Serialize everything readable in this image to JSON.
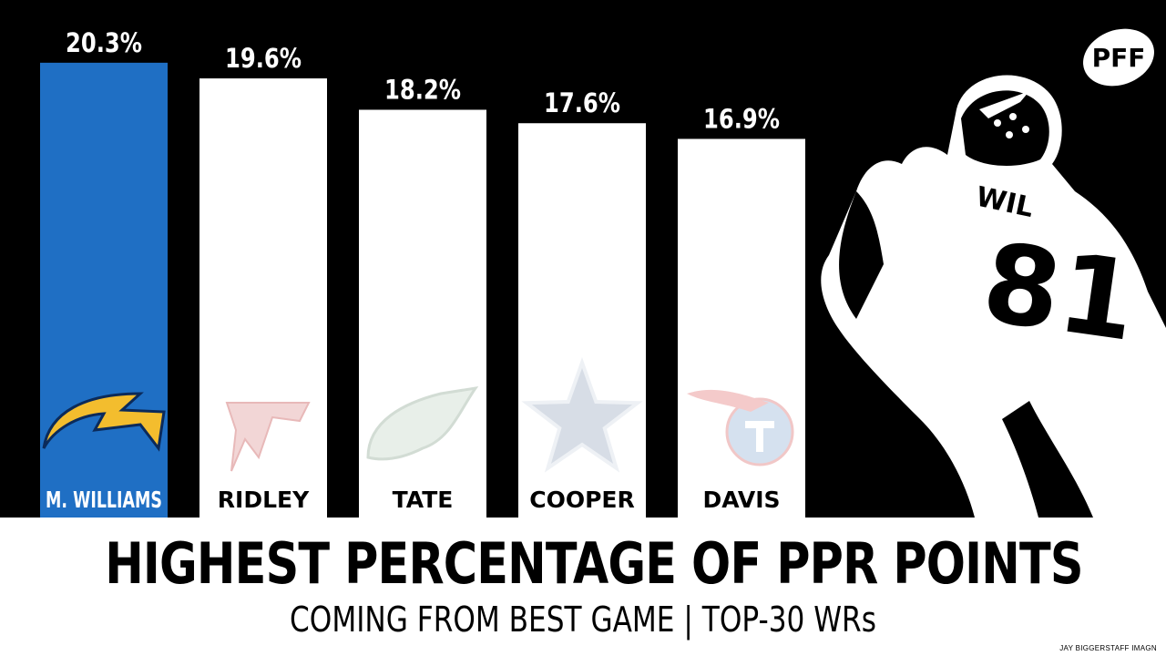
{
  "chart_data": {
    "type": "bar",
    "title": "HIGHEST PERCENTAGE OF PPR POINTS",
    "subtitle": "COMING FROM BEST GAME | TOP-30 WRs",
    "categories": [
      "M. WILLIAMS",
      "RIDLEY",
      "TATE",
      "COOPER",
      "DAVIS"
    ],
    "values": [
      20.3,
      19.6,
      18.2,
      17.6,
      16.9
    ],
    "value_labels": [
      "20.3%",
      "19.6%",
      "18.2%",
      "17.6%",
      "16.9%"
    ],
    "bar_colors": [
      "#1f6fc4",
      "#ffffff",
      "#ffffff",
      "#ffffff",
      "#ffffff"
    ],
    "category_label_colors": [
      "#ffffff",
      "#000000",
      "#000000",
      "#000000",
      "#000000"
    ],
    "team_icons": [
      "chargers-bolt-icon",
      "falcons-icon",
      "eagles-icon",
      "cowboys-star-icon",
      "titans-icon"
    ],
    "ylim": [
      0,
      23.1
    ],
    "grid": false,
    "xlabel": "",
    "ylabel": ""
  },
  "branding": {
    "logo": "PFF"
  },
  "credit": "JAY BIGGERSTAFF IMAGN",
  "colors": {
    "background": "#000000",
    "highlight": "#1f6fc4",
    "footer": "#ffffff"
  }
}
